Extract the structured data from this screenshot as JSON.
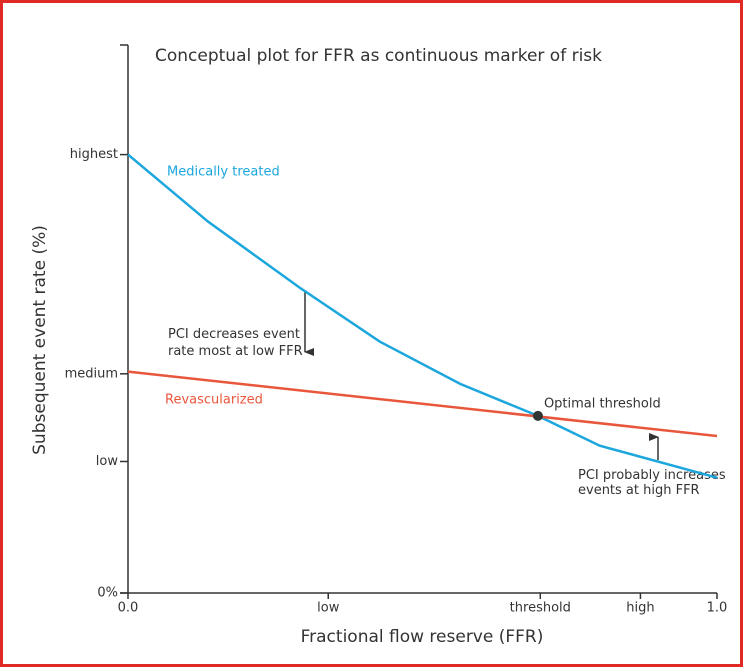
{
  "chart_data": {
    "type": "line",
    "title": "Conceptual plot for FFR as continuous marker of risk",
    "x_label": "Fractional flow reserve (FFR)",
    "y_label": "Subsequent event rate (%)",
    "xlim": [
      0,
      1
    ],
    "ylim": [
      0,
      125
    ],
    "xticks": [
      {
        "value": 0,
        "label": "0.0"
      },
      {
        "value": 0.34,
        "label": "low"
      },
      {
        "value": 0.7,
        "label": "threshold"
      },
      {
        "value": 0.87,
        "label": "high"
      },
      {
        "value": 1,
        "label": "1.0"
      }
    ],
    "yticks": [
      {
        "value": 0,
        "label": "0%"
      },
      {
        "value": 30,
        "label": "low"
      },
      {
        "value": 50,
        "label": "medium"
      },
      {
        "value": 100,
        "label": "highest"
      }
    ],
    "series": [
      {
        "name": "Medically treated",
        "color": "#1ba6dd",
        "x": [
          0,
          0.136,
          0.292,
          0.428,
          0.564,
          0.696,
          0.801,
          1
        ],
        "values": [
          100,
          84.7,
          69.6,
          57.3,
          47.7,
          40.4,
          33.6,
          26.3
        ]
      },
      {
        "name": "Revascularized",
        "color": "#e8573c",
        "x": [
          0,
          1
        ],
        "values": [
          50.5,
          35.8
        ]
      }
    ],
    "marker": {
      "x": 0.696,
      "y": 40.4,
      "label": "Optimal threshold",
      "color": "#333333"
    },
    "annotations": [
      {
        "text": [
          "PCI decreases event",
          "rate most at low FFR"
        ]
      },
      {
        "text": [
          "PCI probably increases",
          "events at high FFR"
        ]
      }
    ]
  }
}
